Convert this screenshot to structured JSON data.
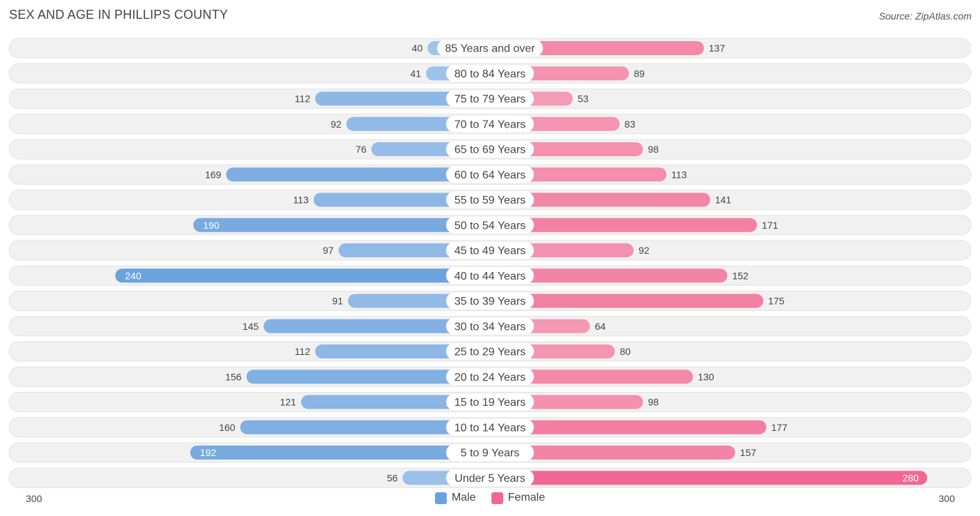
{
  "title": "SEX AND AGE IN PHILLIPS COUNTY",
  "source": "Source: ZipAtlas.com",
  "colors": {
    "male": "#6ba2dd",
    "male_light": "#aac9ec",
    "female": "#f06892",
    "female_light": "#f5a7bf",
    "row_bg": "#f1f1f1",
    "label_bg": "#ffffff"
  },
  "axis": {
    "left_label": "300",
    "right_label": "300"
  },
  "legend": {
    "male_label": "Male",
    "female_label": "Female"
  },
  "chart_data": {
    "type": "bar",
    "orientation": "horizontal-diverging",
    "title": "SEX AND AGE IN PHILLIPS COUNTY",
    "xlim": [
      -300,
      300
    ],
    "categories": [
      "85 Years and over",
      "80 to 84 Years",
      "75 to 79 Years",
      "70 to 74 Years",
      "65 to 69 Years",
      "60 to 64 Years",
      "55 to 59 Years",
      "50 to 54 Years",
      "45 to 49 Years",
      "40 to 44 Years",
      "35 to 39 Years",
      "30 to 34 Years",
      "25 to 29 Years",
      "20 to 24 Years",
      "15 to 19 Years",
      "10 to 14 Years",
      "5 to 9 Years",
      "Under 5 Years"
    ],
    "series": [
      {
        "name": "Male",
        "values": [
          40,
          41,
          112,
          92,
          76,
          169,
          113,
          190,
          97,
          240,
          91,
          145,
          112,
          156,
          121,
          160,
          192,
          56
        ]
      },
      {
        "name": "Female",
        "values": [
          137,
          89,
          53,
          83,
          98,
          113,
          141,
          171,
          92,
          152,
          175,
          64,
          80,
          130,
          98,
          177,
          157,
          280
        ]
      }
    ],
    "legend": "bottom-center"
  }
}
